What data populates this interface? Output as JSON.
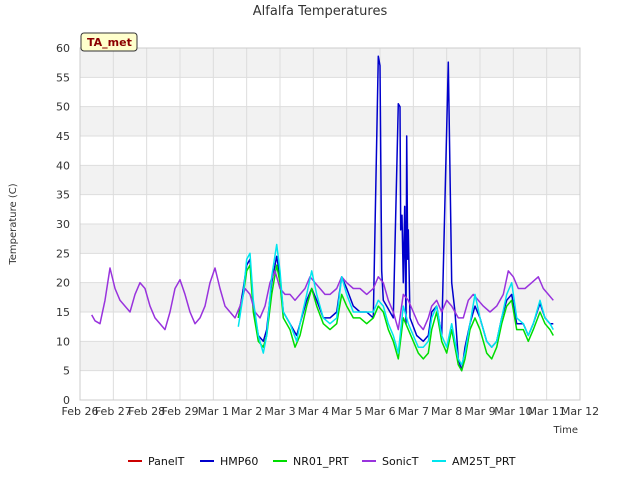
{
  "chart_data": {
    "type": "line",
    "title": "Alfalfa Temperatures",
    "xlabel": "Time",
    "ylabel": "Temperature (C)",
    "badge": "TA_met",
    "x_ticks": [
      "Feb 26",
      "Feb 27",
      "Feb 28",
      "Feb 29",
      "Mar 1",
      "Mar 2",
      "Mar 3",
      "Mar 4",
      "Mar 5",
      "Mar 6",
      "Mar 7",
      "Mar 8",
      "Mar 9",
      "Mar 10",
      "Mar 11",
      "Mar 12"
    ],
    "xlim": [
      0,
      15
    ],
    "ylim": [
      0,
      60
    ],
    "y_ticks": [
      0,
      5,
      10,
      15,
      20,
      25,
      30,
      35,
      40,
      45,
      50,
      55,
      60
    ],
    "grid": true,
    "legend_position": "bottom",
    "series": [
      {
        "name": "PanelT",
        "color": "#cc0000",
        "points": []
      },
      {
        "name": "HMP60",
        "color": "#0000cc",
        "points": [
          [
            4.75,
            14
          ],
          [
            4.9,
            19
          ],
          [
            5.0,
            23
          ],
          [
            5.1,
            24
          ],
          [
            5.2,
            16
          ],
          [
            5.35,
            11
          ],
          [
            5.5,
            10
          ],
          [
            5.6,
            12
          ],
          [
            5.75,
            20
          ],
          [
            5.9,
            24.5
          ],
          [
            6.0,
            21
          ],
          [
            6.1,
            15
          ],
          [
            6.3,
            13
          ],
          [
            6.5,
            11
          ],
          [
            6.6,
            13
          ],
          [
            6.8,
            17
          ],
          [
            6.95,
            19
          ],
          [
            7.1,
            17
          ],
          [
            7.3,
            14
          ],
          [
            7.5,
            14
          ],
          [
            7.7,
            15
          ],
          [
            7.85,
            21
          ],
          [
            8.0,
            19
          ],
          [
            8.2,
            16
          ],
          [
            8.4,
            15
          ],
          [
            8.6,
            15
          ],
          [
            8.8,
            14
          ],
          [
            8.95,
            58.6
          ],
          [
            9.0,
            57
          ],
          [
            9.05,
            22
          ],
          [
            9.1,
            17
          ],
          [
            9.2,
            16
          ],
          [
            9.4,
            14
          ],
          [
            9.55,
            50.5
          ],
          [
            9.6,
            50
          ],
          [
            9.62,
            29
          ],
          [
            9.66,
            31.5
          ],
          [
            9.7,
            20
          ],
          [
            9.74,
            33
          ],
          [
            9.78,
            13
          ],
          [
            9.8,
            45
          ],
          [
            9.83,
            24
          ],
          [
            9.85,
            29
          ],
          [
            9.9,
            14
          ],
          [
            10.1,
            11
          ],
          [
            10.3,
            10
          ],
          [
            10.45,
            11
          ],
          [
            10.55,
            15
          ],
          [
            10.7,
            16
          ],
          [
            10.85,
            11
          ],
          [
            11.05,
            57.6
          ],
          [
            11.15,
            20
          ],
          [
            11.25,
            15
          ],
          [
            11.35,
            7
          ],
          [
            11.45,
            5
          ],
          [
            11.55,
            9
          ],
          [
            11.7,
            13
          ],
          [
            11.85,
            16
          ],
          [
            12.0,
            14
          ],
          [
            12.2,
            10
          ],
          [
            12.35,
            9
          ],
          [
            12.5,
            10
          ],
          [
            12.65,
            14
          ],
          [
            12.8,
            17
          ],
          [
            12.95,
            18
          ],
          [
            13.1,
            13
          ],
          [
            13.3,
            13
          ],
          [
            13.45,
            11
          ],
          [
            13.6,
            13
          ],
          [
            13.8,
            16.5
          ],
          [
            13.95,
            14
          ],
          [
            14.1,
            13
          ],
          [
            14.2,
            13
          ]
        ]
      },
      {
        "name": "NR01_PRT",
        "color": "#00dd00",
        "points": [
          [
            4.75,
            14
          ],
          [
            4.9,
            18
          ],
          [
            5.0,
            22
          ],
          [
            5.1,
            23
          ],
          [
            5.2,
            15
          ],
          [
            5.35,
            10
          ],
          [
            5.5,
            9
          ],
          [
            5.6,
            11
          ],
          [
            5.75,
            18
          ],
          [
            5.9,
            23
          ],
          [
            6.0,
            20
          ],
          [
            6.1,
            14
          ],
          [
            6.3,
            12
          ],
          [
            6.45,
            9
          ],
          [
            6.6,
            11
          ],
          [
            6.8,
            16
          ],
          [
            6.95,
            19
          ],
          [
            7.1,
            16
          ],
          [
            7.3,
            13
          ],
          [
            7.5,
            12
          ],
          [
            7.7,
            13
          ],
          [
            7.85,
            18
          ],
          [
            8.0,
            16
          ],
          [
            8.2,
            14
          ],
          [
            8.4,
            14
          ],
          [
            8.6,
            13
          ],
          [
            8.8,
            14
          ],
          [
            8.95,
            16
          ],
          [
            9.1,
            15
          ],
          [
            9.25,
            12
          ],
          [
            9.4,
            10
          ],
          [
            9.55,
            7
          ],
          [
            9.7,
            14
          ],
          [
            9.85,
            12
          ],
          [
            10.0,
            10
          ],
          [
            10.15,
            8
          ],
          [
            10.3,
            7
          ],
          [
            10.45,
            8
          ],
          [
            10.55,
            12
          ],
          [
            10.7,
            15
          ],
          [
            10.85,
            10
          ],
          [
            11.0,
            8
          ],
          [
            11.15,
            12
          ],
          [
            11.25,
            9
          ],
          [
            11.35,
            6
          ],
          [
            11.45,
            5
          ],
          [
            11.55,
            7
          ],
          [
            11.7,
            12
          ],
          [
            11.85,
            14
          ],
          [
            12.0,
            12
          ],
          [
            12.2,
            8
          ],
          [
            12.35,
            7
          ],
          [
            12.5,
            9
          ],
          [
            12.65,
            13
          ],
          [
            12.8,
            16
          ],
          [
            12.95,
            17
          ],
          [
            13.1,
            12
          ],
          [
            13.3,
            12
          ],
          [
            13.45,
            10
          ],
          [
            13.6,
            12
          ],
          [
            13.8,
            15
          ],
          [
            13.95,
            13
          ],
          [
            14.1,
            12
          ],
          [
            14.2,
            11
          ]
        ]
      },
      {
        "name": "SonicT",
        "color": "#9933dd",
        "points": [
          [
            0.35,
            14.5
          ],
          [
            0.45,
            13.5
          ],
          [
            0.6,
            13
          ],
          [
            0.75,
            17
          ],
          [
            0.9,
            22.5
          ],
          [
            1.05,
            19
          ],
          [
            1.2,
            17
          ],
          [
            1.35,
            16
          ],
          [
            1.5,
            15
          ],
          [
            1.65,
            18
          ],
          [
            1.8,
            20
          ],
          [
            1.95,
            19
          ],
          [
            2.1,
            16
          ],
          [
            2.25,
            14
          ],
          [
            2.4,
            13
          ],
          [
            2.55,
            12
          ],
          [
            2.7,
            15
          ],
          [
            2.85,
            19
          ],
          [
            3.0,
            20.5
          ],
          [
            3.15,
            18
          ],
          [
            3.3,
            15
          ],
          [
            3.45,
            13
          ],
          [
            3.6,
            14
          ],
          [
            3.75,
            16
          ],
          [
            3.9,
            20
          ],
          [
            4.05,
            22.5
          ],
          [
            4.2,
            19
          ],
          [
            4.35,
            16
          ],
          [
            4.5,
            15
          ],
          [
            4.65,
            14
          ],
          [
            4.8,
            16
          ],
          [
            4.95,
            19
          ],
          [
            5.1,
            18
          ],
          [
            5.25,
            15
          ],
          [
            5.4,
            14
          ],
          [
            5.55,
            16
          ],
          [
            5.7,
            20
          ],
          [
            5.85,
            22
          ],
          [
            6.0,
            19
          ],
          [
            6.15,
            18
          ],
          [
            6.3,
            18
          ],
          [
            6.45,
            17
          ],
          [
            6.6,
            18
          ],
          [
            6.75,
            19
          ],
          [
            6.9,
            21
          ],
          [
            7.05,
            20
          ],
          [
            7.2,
            19
          ],
          [
            7.35,
            18
          ],
          [
            7.5,
            18
          ],
          [
            7.7,
            19
          ],
          [
            7.85,
            21
          ],
          [
            8.0,
            20
          ],
          [
            8.2,
            19
          ],
          [
            8.4,
            19
          ],
          [
            8.6,
            18
          ],
          [
            8.8,
            19
          ],
          [
            8.95,
            21
          ],
          [
            9.1,
            20
          ],
          [
            9.25,
            17
          ],
          [
            9.4,
            15
          ],
          [
            9.55,
            12
          ],
          [
            9.7,
            18
          ],
          [
            9.85,
            17
          ],
          [
            10.0,
            15
          ],
          [
            10.15,
            13
          ],
          [
            10.3,
            12
          ],
          [
            10.45,
            14
          ],
          [
            10.55,
            16
          ],
          [
            10.7,
            17
          ],
          [
            10.85,
            15
          ],
          [
            11.0,
            17
          ],
          [
            11.15,
            16
          ],
          [
            11.25,
            15
          ],
          [
            11.35,
            14
          ],
          [
            11.5,
            14
          ],
          [
            11.65,
            17
          ],
          [
            11.8,
            18
          ],
          [
            11.95,
            17
          ],
          [
            12.1,
            16
          ],
          [
            12.3,
            15
          ],
          [
            12.5,
            16
          ],
          [
            12.7,
            18
          ],
          [
            12.85,
            22
          ],
          [
            13.0,
            21
          ],
          [
            13.15,
            19
          ],
          [
            13.35,
            19
          ],
          [
            13.55,
            20
          ],
          [
            13.75,
            21
          ],
          [
            13.9,
            19
          ],
          [
            14.05,
            18
          ],
          [
            14.2,
            17
          ]
        ]
      },
      {
        "name": "AM25T_PRT",
        "color": "#00e5ee",
        "points": [
          [
            4.75,
            12.5
          ],
          [
            4.9,
            18
          ],
          [
            5.0,
            24
          ],
          [
            5.1,
            25
          ],
          [
            5.2,
            17
          ],
          [
            5.35,
            11
          ],
          [
            5.5,
            8
          ],
          [
            5.6,
            11
          ],
          [
            5.75,
            21
          ],
          [
            5.9,
            26.5
          ],
          [
            6.0,
            22
          ],
          [
            6.1,
            15
          ],
          [
            6.3,
            13
          ],
          [
            6.5,
            10
          ],
          [
            6.6,
            13
          ],
          [
            6.8,
            18
          ],
          [
            6.95,
            22
          ],
          [
            7.1,
            18
          ],
          [
            7.3,
            14
          ],
          [
            7.5,
            13
          ],
          [
            7.7,
            14
          ],
          [
            7.85,
            21
          ],
          [
            8.0,
            18
          ],
          [
            8.2,
            15
          ],
          [
            8.4,
            15
          ],
          [
            8.6,
            15
          ],
          [
            8.8,
            15
          ],
          [
            8.95,
            17
          ],
          [
            9.1,
            16
          ],
          [
            9.25,
            13
          ],
          [
            9.4,
            11
          ],
          [
            9.55,
            8
          ],
          [
            9.7,
            16
          ],
          [
            9.85,
            13
          ],
          [
            10.0,
            11
          ],
          [
            10.15,
            9
          ],
          [
            10.3,
            9
          ],
          [
            10.45,
            10
          ],
          [
            10.55,
            14
          ],
          [
            10.7,
            16
          ],
          [
            10.85,
            11
          ],
          [
            11.0,
            9
          ],
          [
            11.15,
            13
          ],
          [
            11.25,
            10
          ],
          [
            11.35,
            7
          ],
          [
            11.45,
            6
          ],
          [
            11.55,
            8
          ],
          [
            11.7,
            13
          ],
          [
            11.85,
            18
          ],
          [
            12.0,
            14
          ],
          [
            12.2,
            10
          ],
          [
            12.35,
            9
          ],
          [
            12.5,
            10
          ],
          [
            12.65,
            14
          ],
          [
            12.8,
            18
          ],
          [
            12.95,
            20
          ],
          [
            13.1,
            14
          ],
          [
            13.3,
            13
          ],
          [
            13.45,
            11
          ],
          [
            13.6,
            13
          ],
          [
            13.8,
            17
          ],
          [
            13.95,
            14
          ],
          [
            14.1,
            13
          ],
          [
            14.2,
            12
          ]
        ]
      }
    ]
  },
  "colors": {
    "band": "#f2f2f2",
    "grid": "#dddddd",
    "badge_fill": "#ffffcc"
  }
}
